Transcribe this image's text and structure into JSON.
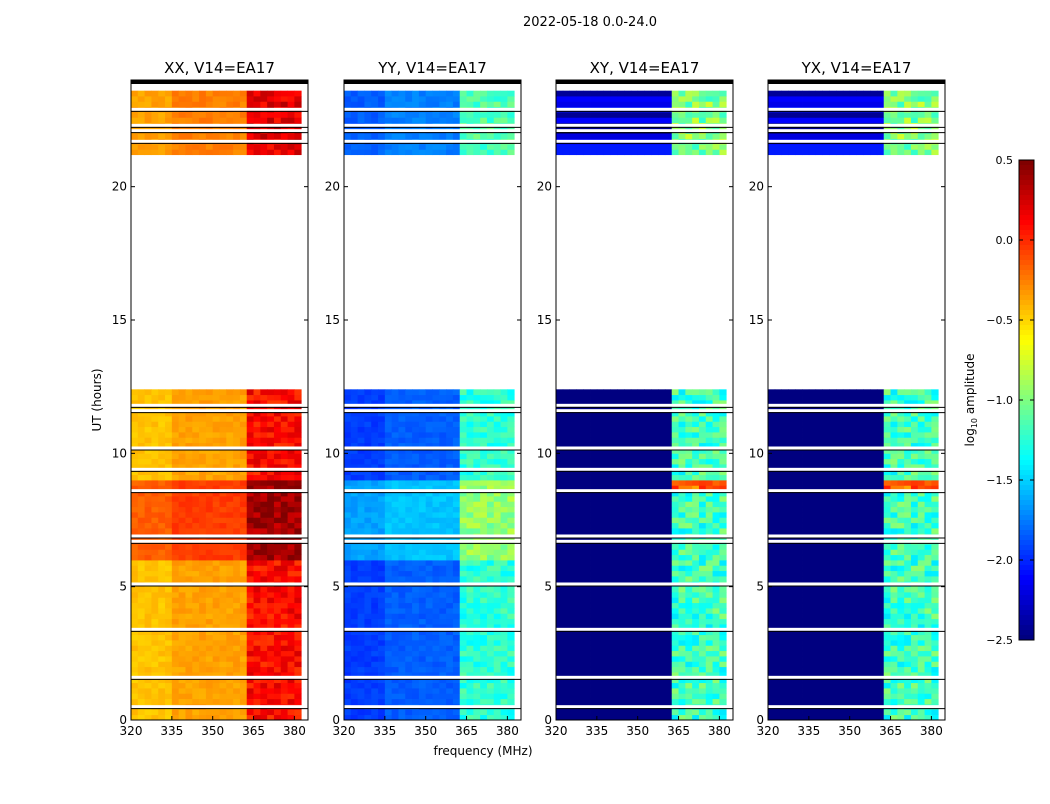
{
  "chart_data": {
    "type": "heatmap",
    "title": "2022-05-18 0.0-24.0",
    "xlabel": "frequency (MHz)",
    "ylabel": "UT (hours)",
    "xlim": [
      320,
      385
    ],
    "ylim": [
      0,
      24
    ],
    "xticks": [
      "320",
      "335",
      "350",
      "365",
      "380"
    ],
    "yticks": [
      "0",
      "5",
      "10",
      "15",
      "20"
    ],
    "xtick_values": [
      320,
      335,
      350,
      365,
      380
    ],
    "ytick_values": [
      0,
      5,
      10,
      15,
      20
    ],
    "time_segments_with_data": [
      [
        0,
        12.4
      ],
      [
        21.2,
        23.5
      ]
    ],
    "flagged_times": [
      0.5,
      1.6,
      3.4,
      5.1,
      6.7,
      6.9,
      8.6,
      9.4,
      10.2,
      11.6,
      11.8,
      21.7,
      22.1,
      22.3,
      22.9
    ],
    "upper_band_MHz": [
      362,
      382
    ],
    "panels": [
      {
        "title": "XX, V14=EA17",
        "lower_band_level": -0.4,
        "upper_band_level": 0.1,
        "bright_hours": [
          6,
          9
        ],
        "bright_offset": 0.3
      },
      {
        "title": "YY, V14=EA17",
        "lower_band_level": -1.9,
        "upper_band_level": -1.25,
        "bright_hours": [
          6,
          9
        ],
        "bright_offset": 0.3
      },
      {
        "title": "XY, V14=EA17",
        "lower_band_level": -2.5,
        "upper_band_level": -1.2,
        "bright_hours": [
          8.6,
          9.0
        ],
        "bright_offset": 1.0
      },
      {
        "title": "YX, V14=EA17",
        "lower_band_level": -2.5,
        "upper_band_level": -1.2,
        "bright_hours": [
          8.6,
          9.0
        ],
        "bright_offset": 1.0
      }
    ],
    "colorbar": {
      "label_prefix": "log",
      "label_sub": "10",
      "label_suffix": " amplitude",
      "range": [
        -2.5,
        0.5
      ],
      "ticks": [
        "0.5",
        "0.0",
        "−0.5",
        "−1.0",
        "−1.5",
        "−2.0",
        "−2.5"
      ],
      "tick_values": [
        0.5,
        0.0,
        -0.5,
        -1.0,
        -1.5,
        -2.0,
        -2.5
      ],
      "colormap": "jet"
    }
  }
}
